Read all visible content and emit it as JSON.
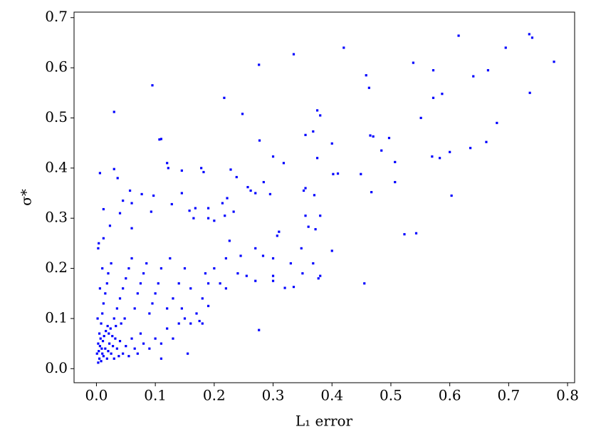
{
  "chart_data": {
    "type": "scatter",
    "x_label": "L₁ error",
    "y_label": "σ*",
    "color": "#0000ff",
    "grid": false,
    "xlim": [
      -0.038,
      0.812
    ],
    "ylim": [
      -0.028,
      0.711
    ],
    "xticks": [
      {
        "value": 0,
        "label": "0.0"
      },
      {
        "value": 0.1,
        "label": "0.1"
      },
      {
        "value": 0.2,
        "label": "0.2"
      },
      {
        "value": 0.3,
        "label": "0.3"
      },
      {
        "value": 0.4,
        "label": "0.4"
      },
      {
        "value": 0.5,
        "label": "0.5"
      },
      {
        "value": 0.6,
        "label": "0.6"
      },
      {
        "value": 0.7,
        "label": "0.7"
      },
      {
        "value": 0.8,
        "label": "0.8"
      }
    ],
    "yticks": [
      {
        "value": 0,
        "label": "0.0"
      },
      {
        "value": 0.1,
        "label": "0.1"
      },
      {
        "value": 0.2,
        "label": "0.2"
      },
      {
        "value": 0.3,
        "label": "0.3"
      },
      {
        "value": 0.4,
        "label": "0.4"
      },
      {
        "value": 0.5,
        "label": "0.5"
      },
      {
        "value": 0.6,
        "label": "0.6"
      },
      {
        "value": 0.7,
        "label": "0.7"
      }
    ],
    "x": [
      0.735,
      0.74,
      0.615,
      0.777,
      0.695,
      0.42,
      0.335,
      0.276,
      0.538,
      0.572,
      0.665,
      0.64,
      0.458,
      0.095,
      0.463,
      0.736,
      0.587,
      0.572,
      0.217,
      0.03,
      0.375,
      0.38,
      0.248,
      0.551,
      0.68,
      0.368,
      0.355,
      0.465,
      0.47,
      0.497,
      0.107,
      0.11,
      0.277,
      0.4,
      0.662,
      0.484,
      0.635,
      0.6,
      0.57,
      0.583,
      0.375,
      0.3,
      0.318,
      0.507,
      0.12,
      0.122,
      0.178,
      0.182,
      0.228,
      0.145,
      0.006,
      0.03,
      0.036,
      0.402,
      0.449,
      0.238,
      0.507,
      0.284,
      0.257,
      0.262,
      0.355,
      0.37,
      0.467,
      0.603,
      0.295,
      0.222,
      0.27,
      0.214,
      0.352,
      0.057,
      0.077,
      0.097,
      0.145,
      0.045,
      0.128,
      0.06,
      0.012,
      0.19,
      0.355,
      0.38,
      0.168,
      0.158,
      0.093,
      0.04,
      0.233,
      0.218,
      0.36,
      0.372,
      0.31,
      0.307,
      0.523,
      0.543,
      0.41,
      0.19,
      0.2,
      0.165,
      0.023,
      0.06,
      0.004,
      0.003,
      0.012,
      0.348,
      0.27,
      0.226,
      0.245,
      0.22,
      0.3,
      0.283,
      0.368,
      0.4,
      0.455,
      0.335,
      0.32,
      0.276,
      0.3,
      0.3,
      0.38,
      0.377,
      0.33,
      0.35,
      0.27,
      0.255,
      0.24,
      0.2,
      0.185,
      0.19,
      0.21,
      0.22,
      0.18,
      0.155,
      0.11,
      0.003,
      0.005,
      0.008,
      0.01,
      0.012,
      0.015,
      0.018,
      0.02,
      0.022,
      0.025,
      0.028,
      0.03,
      0.032,
      0.035,
      0.038,
      0.04,
      0.045,
      0.05,
      0.055,
      0.06,
      0.065,
      0.07,
      0.075,
      0.08,
      0.09,
      0.1,
      0.11,
      0.12,
      0.13,
      0.14,
      0.15,
      0.16,
      0.17,
      0.175,
      0.18,
      0.19,
      0.005,
      0.008,
      0.01,
      0.012,
      0.015,
      0.018,
      0.02,
      0.025,
      0.01,
      0.006,
      0.03,
      0.035,
      0.04,
      0.045,
      0.05,
      0.055,
      0.06,
      0.065,
      0.07,
      0.075,
      0.08,
      0.085,
      0.09,
      0.095,
      0.1,
      0.105,
      0.11,
      0.12,
      0.125,
      0.13,
      0.14,
      0.145,
      0.15,
      0.16,
      0.003,
      0.004,
      0.006,
      0.007,
      0.009,
      0.011,
      0.013,
      0.016,
      0.019,
      0.021,
      0.024,
      0.027,
      0.033,
      0.042,
      0.048,
      0.002,
      0.001
    ],
    "values": [
      0.667,
      0.66,
      0.664,
      0.612,
      0.64,
      0.64,
      0.627,
      0.606,
      0.61,
      0.595,
      0.595,
      0.583,
      0.585,
      0.565,
      0.56,
      0.55,
      0.548,
      0.54,
      0.54,
      0.512,
      0.515,
      0.505,
      0.508,
      0.5,
      0.49,
      0.473,
      0.466,
      0.465,
      0.463,
      0.46,
      0.457,
      0.458,
      0.455,
      0.449,
      0.452,
      0.435,
      0.44,
      0.432,
      0.423,
      0.42,
      0.42,
      0.423,
      0.41,
      0.412,
      0.41,
      0.4,
      0.4,
      0.392,
      0.397,
      0.395,
      0.39,
      0.398,
      0.38,
      0.388,
      0.388,
      0.382,
      0.372,
      0.372,
      0.362,
      0.355,
      0.36,
      0.346,
      0.352,
      0.345,
      0.348,
      0.34,
      0.35,
      0.33,
      0.355,
      0.355,
      0.348,
      0.345,
      0.35,
      0.335,
      0.328,
      0.33,
      0.318,
      0.32,
      0.305,
      0.305,
      0.32,
      0.315,
      0.313,
      0.31,
      0.313,
      0.305,
      0.283,
      0.278,
      0.273,
      0.265,
      0.268,
      0.27,
      0.389,
      0.3,
      0.295,
      0.3,
      0.285,
      0.28,
      0.25,
      0.24,
      0.26,
      0.24,
      0.24,
      0.255,
      0.225,
      0.22,
      0.22,
      0.225,
      0.21,
      0.235,
      0.17,
      0.163,
      0.161,
      0.077,
      0.185,
      0.175,
      0.185,
      0.18,
      0.21,
      0.19,
      0.175,
      0.185,
      0.19,
      0.2,
      0.19,
      0.17,
      0.17,
      0.16,
      0.14,
      0.03,
      0.02,
      0.012,
      0.02,
      0.015,
      0.03,
      0.025,
      0.04,
      0.02,
      0.035,
      0.05,
      0.03,
      0.045,
      0.02,
      0.06,
      0.04,
      0.025,
      0.055,
      0.03,
      0.045,
      0.025,
      0.06,
      0.04,
      0.03,
      0.07,
      0.05,
      0.04,
      0.06,
      0.05,
      0.08,
      0.06,
      0.09,
      0.1,
      0.09,
      0.11,
      0.095,
      0.09,
      0.125,
      0.07,
      0.09,
      0.11,
      0.13,
      0.15,
      0.17,
      0.19,
      0.21,
      0.2,
      0.16,
      0.1,
      0.12,
      0.14,
      0.16,
      0.18,
      0.2,
      0.22,
      0.12,
      0.15,
      0.17,
      0.19,
      0.21,
      0.11,
      0.13,
      0.15,
      0.17,
      0.2,
      0.12,
      0.22,
      0.14,
      0.17,
      0.12,
      0.2,
      0.16,
      0.05,
      0.035,
      0.045,
      0.06,
      0.04,
      0.055,
      0.065,
      0.075,
      0.085,
      0.07,
      0.08,
      0.065,
      0.085,
      0.09,
      0.1,
      0.1,
      0.03
    ]
  }
}
